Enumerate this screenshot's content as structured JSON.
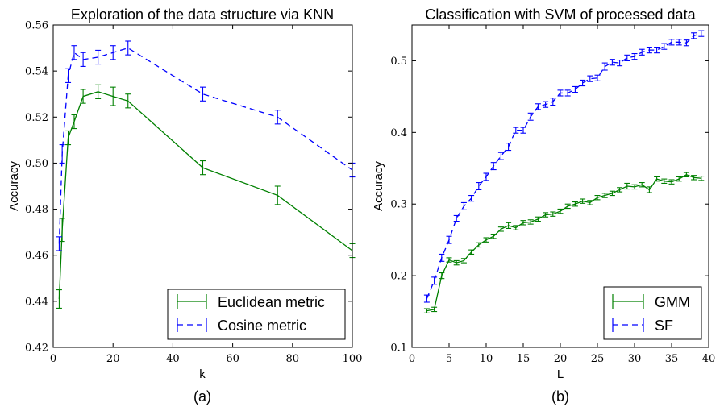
{
  "chart_data": [
    {
      "type": "line",
      "title": "Exploration of the data structure via KNN",
      "xlabel": "k",
      "ylabel": "Accuracy",
      "caption": "(a)",
      "xlim": [
        0,
        100
      ],
      "ylim": [
        0.42,
        0.56
      ],
      "xticks": [
        0,
        20,
        40,
        60,
        80,
        100
      ],
      "yticks": [
        0.42,
        0.44,
        0.46,
        0.48,
        0.5,
        0.52,
        0.54,
        0.56
      ],
      "xtick_labels": [
        "0",
        "20",
        "40",
        "60",
        "80",
        "100"
      ],
      "ytick_labels": [
        "0.42",
        "0.44",
        "0.46",
        "0.48",
        "0.50",
        "0.52",
        "0.54",
        "0.56"
      ],
      "legend_position": "lower-right",
      "series": [
        {
          "name": "Euclidean metric",
          "color": "#008000",
          "style": "solid",
          "x": [
            2,
            3,
            5,
            7,
            10,
            15,
            20,
            25,
            50,
            75,
            100
          ],
          "y": [
            0.441,
            0.471,
            0.511,
            0.518,
            0.529,
            0.531,
            0.529,
            0.527,
            0.498,
            0.486,
            0.462
          ],
          "err": [
            0.004,
            0.005,
            0.003,
            0.003,
            0.003,
            0.003,
            0.004,
            0.003,
            0.003,
            0.004,
            0.003
          ]
        },
        {
          "name": "Cosine metric",
          "color": "#0000ff",
          "style": "dashed",
          "x": [
            2,
            3,
            5,
            7,
            10,
            15,
            20,
            25,
            50,
            75,
            100
          ],
          "y": [
            0.465,
            0.504,
            0.538,
            0.548,
            0.545,
            0.546,
            0.548,
            0.55,
            0.53,
            0.52,
            0.497
          ],
          "err": [
            0.003,
            0.004,
            0.003,
            0.003,
            0.003,
            0.003,
            0.003,
            0.003,
            0.003,
            0.003,
            0.003
          ]
        }
      ]
    },
    {
      "type": "line",
      "title": "Classification with SVM of processed data",
      "xlabel": "L",
      "ylabel": "Accuracy",
      "caption": "(b)",
      "xlim": [
        0,
        40
      ],
      "ylim": [
        0.1,
        0.55
      ],
      "xticks": [
        0,
        5,
        10,
        15,
        20,
        25,
        30,
        35,
        40
      ],
      "yticks": [
        0.1,
        0.2,
        0.3,
        0.4,
        0.5
      ],
      "xtick_labels": [
        "0",
        "5",
        "10",
        "15",
        "20",
        "25",
        "30",
        "35",
        "40"
      ],
      "ytick_labels": [
        "0.1",
        "0.2",
        "0.3",
        "0.4",
        "0.5"
      ],
      "legend_position": "lower-right",
      "series": [
        {
          "name": "GMM",
          "color": "#008000",
          "style": "solid",
          "x": [
            2,
            3,
            4,
            5,
            6,
            7,
            8,
            9,
            10,
            11,
            12,
            13,
            14,
            15,
            16,
            17,
            18,
            19,
            20,
            21,
            22,
            23,
            24,
            25,
            26,
            27,
            28,
            29,
            30,
            31,
            32,
            33,
            34,
            35,
            36,
            37,
            38,
            39
          ],
          "y": [
            0.151,
            0.153,
            0.2,
            0.222,
            0.218,
            0.221,
            0.233,
            0.243,
            0.25,
            0.255,
            0.265,
            0.27,
            0.267,
            0.274,
            0.275,
            0.279,
            0.285,
            0.286,
            0.29,
            0.297,
            0.3,
            0.304,
            0.302,
            0.309,
            0.312,
            0.315,
            0.32,
            0.325,
            0.324,
            0.327,
            0.32,
            0.335,
            0.332,
            0.331,
            0.335,
            0.341,
            0.337,
            0.336
          ],
          "err": [
            0.003,
            0.003,
            0.004,
            0.003,
            0.003,
            0.003,
            0.003,
            0.003,
            0.003,
            0.003,
            0.003,
            0.004,
            0.003,
            0.003,
            0.003,
            0.003,
            0.003,
            0.003,
            0.003,
            0.003,
            0.003,
            0.003,
            0.003,
            0.003,
            0.003,
            0.003,
            0.003,
            0.004,
            0.003,
            0.003,
            0.004,
            0.003,
            0.003,
            0.003,
            0.003,
            0.003,
            0.003,
            0.003
          ]
        },
        {
          "name": "SF",
          "color": "#0000ff",
          "style": "dashed",
          "x": [
            2,
            3,
            4,
            5,
            6,
            7,
            8,
            9,
            10,
            11,
            12,
            13,
            14,
            15,
            16,
            17,
            18,
            19,
            20,
            21,
            22,
            23,
            24,
            25,
            26,
            27,
            28,
            29,
            30,
            31,
            32,
            33,
            34,
            35,
            36,
            37,
            38,
            39
          ],
          "y": [
            0.168,
            0.193,
            0.225,
            0.25,
            0.28,
            0.297,
            0.308,
            0.325,
            0.338,
            0.353,
            0.367,
            0.38,
            0.403,
            0.403,
            0.422,
            0.436,
            0.439,
            0.443,
            0.455,
            0.455,
            0.46,
            0.469,
            0.475,
            0.476,
            0.492,
            0.498,
            0.497,
            0.504,
            0.506,
            0.512,
            0.515,
            0.515,
            0.52,
            0.526,
            0.526,
            0.525,
            0.535,
            0.538
          ],
          "err": [
            0.005,
            0.005,
            0.005,
            0.005,
            0.004,
            0.005,
            0.004,
            0.005,
            0.005,
            0.005,
            0.005,
            0.005,
            0.004,
            0.004,
            0.005,
            0.004,
            0.004,
            0.005,
            0.004,
            0.004,
            0.004,
            0.004,
            0.004,
            0.004,
            0.005,
            0.004,
            0.004,
            0.004,
            0.004,
            0.004,
            0.004,
            0.004,
            0.004,
            0.004,
            0.004,
            0.004,
            0.004,
            0.004
          ]
        }
      ]
    }
  ]
}
